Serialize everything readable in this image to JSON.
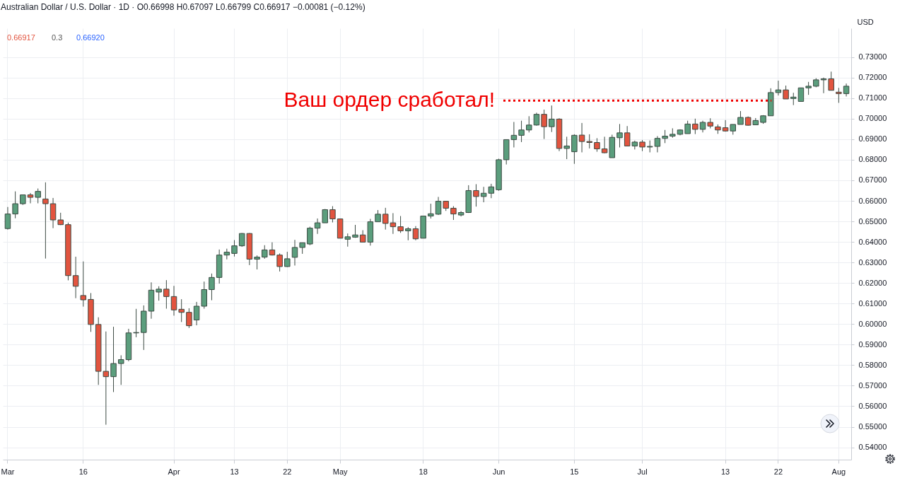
{
  "chart_data": {
    "type": "candlestick",
    "title": "Australian Dollar / U.S. Dollar · 1D · O0.66998 H0.67097 L0.66799 C0.66917 −0.00081 (−0.12%)",
    "ylabel": "USD",
    "annotations": [
      "0.66917",
      "0.3",
      "0.66920"
    ],
    "ref_lines": [
      {
        "axis": "y",
        "value": 0.7088,
        "label": "Ваш ордер сработал!",
        "color": "#f00000",
        "line_style": "dotted"
      }
    ],
    "categories": [
      "Mar",
      null,
      null,
      null,
      null,
      null,
      null,
      null,
      null,
      null,
      "16",
      null,
      null,
      null,
      null,
      null,
      null,
      null,
      null,
      null,
      null,
      null,
      "Apr",
      null,
      null,
      null,
      null,
      null,
      null,
      null,
      "13",
      null,
      null,
      null,
      null,
      null,
      null,
      "22",
      null,
      null,
      null,
      null,
      null,
      null,
      "May",
      null,
      null,
      null,
      null,
      null,
      null,
      null,
      null,
      null,
      null,
      "18",
      null,
      null,
      null,
      null,
      null,
      null,
      null,
      null,
      null,
      "Jun",
      null,
      null,
      null,
      null,
      null,
      null,
      null,
      null,
      null,
      "15",
      null,
      null,
      null,
      null,
      null,
      null,
      null,
      null,
      "Jul",
      null,
      null,
      null,
      null,
      null,
      null,
      null,
      null,
      null,
      null,
      "13",
      null,
      null,
      null,
      null,
      null,
      null,
      "22",
      null,
      null,
      null,
      null,
      null,
      null,
      null,
      "Aug",
      null
    ],
    "ohlc": [
      [
        0.6465,
        0.657,
        0.646,
        0.6536
      ],
      [
        0.6536,
        0.6646,
        0.6515,
        0.6586
      ],
      [
        0.6586,
        0.6629,
        0.658,
        0.6629
      ],
      [
        0.6629,
        0.6638,
        0.6588,
        0.6617
      ],
      [
        0.6617,
        0.666,
        0.6588,
        0.6646
      ],
      [
        0.6609,
        0.669,
        0.6319,
        0.6586
      ],
      [
        0.6586,
        0.6614,
        0.6467,
        0.6507
      ],
      [
        0.6507,
        0.6542,
        0.6482,
        0.6484
      ],
      [
        0.6484,
        0.6494,
        0.6213,
        0.6236
      ],
      [
        0.6236,
        0.6328,
        0.6126,
        0.6184
      ],
      [
        0.6139,
        0.6305,
        0.6085,
        0.6118
      ],
      [
        0.612,
        0.6151,
        0.5962,
        0.5998
      ],
      [
        0.5998,
        0.6033,
        0.5704,
        0.577
      ],
      [
        0.577,
        0.5964,
        0.551,
        0.5744
      ],
      [
        0.5744,
        0.5987,
        0.5669,
        0.5808
      ],
      [
        0.5808,
        0.5848,
        0.5704,
        0.5827
      ],
      [
        0.5827,
        0.5977,
        0.5819,
        0.5957
      ],
      [
        0.5957,
        0.6074,
        0.5936,
        0.5959
      ],
      [
        0.5959,
        0.6091,
        0.5874,
        0.6063
      ],
      [
        0.6063,
        0.6203,
        0.6026,
        0.6165
      ],
      [
        0.6156,
        0.6184,
        0.6114,
        0.617
      ],
      [
        0.617,
        0.6214,
        0.6075,
        0.6134
      ],
      [
        0.6134,
        0.6186,
        0.6041,
        0.6069
      ],
      [
        0.6072,
        0.6121,
        0.601,
        0.6057
      ],
      [
        0.6057,
        0.6077,
        0.5981,
        0.5992
      ],
      [
        0.602,
        0.6108,
        0.5994,
        0.6087
      ],
      [
        0.6087,
        0.6207,
        0.6075,
        0.6168
      ],
      [
        0.6168,
        0.6246,
        0.6116,
        0.6227
      ],
      [
        0.6227,
        0.6363,
        0.6197,
        0.6336
      ],
      [
        0.6336,
        0.6367,
        0.6315,
        0.635
      ],
      [
        0.6344,
        0.6409,
        0.6329,
        0.6381
      ],
      [
        0.6381,
        0.6443,
        0.6376,
        0.6441
      ],
      [
        0.6441,
        0.6443,
        0.6287,
        0.6316
      ],
      [
        0.6316,
        0.6334,
        0.6266,
        0.6326
      ],
      [
        0.6326,
        0.6384,
        0.6318,
        0.6361
      ],
      [
        0.6361,
        0.6398,
        0.6334,
        0.6336
      ],
      [
        0.6336,
        0.6344,
        0.6256,
        0.628
      ],
      [
        0.628,
        0.6352,
        0.6278,
        0.6318
      ],
      [
        0.6325,
        0.641,
        0.6285,
        0.6373
      ],
      [
        0.6373,
        0.6396,
        0.6342,
        0.6396
      ],
      [
        0.639,
        0.6474,
        0.6384,
        0.6467
      ],
      [
        0.6467,
        0.6514,
        0.6439,
        0.6493
      ],
      [
        0.6493,
        0.656,
        0.6493,
        0.6557
      ],
      [
        0.6557,
        0.6574,
        0.6495,
        0.6512
      ],
      [
        0.6512,
        0.6514,
        0.6418,
        0.6418
      ],
      [
        0.6413,
        0.6441,
        0.6377,
        0.6425
      ],
      [
        0.6423,
        0.6483,
        0.642,
        0.6434
      ],
      [
        0.6434,
        0.6457,
        0.6399,
        0.6399
      ],
      [
        0.6399,
        0.6512,
        0.6382,
        0.6498
      ],
      [
        0.6498,
        0.6555,
        0.6498,
        0.6535
      ],
      [
        0.6535,
        0.6566,
        0.646,
        0.649
      ],
      [
        0.6493,
        0.654,
        0.6439,
        0.6474
      ],
      [
        0.6474,
        0.6526,
        0.6444,
        0.6454
      ],
      [
        0.6454,
        0.6472,
        0.6408,
        0.6464
      ],
      [
        0.6464,
        0.6477,
        0.6408,
        0.6415
      ],
      [
        0.6418,
        0.6526,
        0.6418,
        0.6526
      ],
      [
        0.6526,
        0.6586,
        0.6514,
        0.6537
      ],
      [
        0.6535,
        0.6619,
        0.6531,
        0.6598
      ],
      [
        0.6598,
        0.6598,
        0.6551,
        0.6564
      ],
      [
        0.6564,
        0.6574,
        0.6507,
        0.6536
      ],
      [
        0.6531,
        0.655,
        0.6524,
        0.6543
      ],
      [
        0.6543,
        0.6676,
        0.6541,
        0.665
      ],
      [
        0.665,
        0.6681,
        0.6572,
        0.6621
      ],
      [
        0.6621,
        0.6668,
        0.6593,
        0.6637
      ],
      [
        0.6637,
        0.6683,
        0.6613,
        0.6668
      ],
      [
        0.6654,
        0.6805,
        0.6649,
        0.68
      ],
      [
        0.68,
        0.6898,
        0.6777,
        0.6898
      ],
      [
        0.6898,
        0.6984,
        0.686,
        0.6919
      ],
      [
        0.6919,
        0.699,
        0.6886,
        0.6945
      ],
      [
        0.6945,
        0.7012,
        0.6933,
        0.6969
      ],
      [
        0.6969,
        0.7029,
        0.6966,
        0.7021
      ],
      [
        0.7021,
        0.7044,
        0.6901,
        0.6961
      ],
      [
        0.6961,
        0.7064,
        0.6935,
        0.6998
      ],
      [
        0.6998,
        0.7002,
        0.6842,
        0.6855
      ],
      [
        0.6855,
        0.6912,
        0.6803,
        0.6867
      ],
      [
        0.6839,
        0.6924,
        0.678,
        0.6919
      ],
      [
        0.692,
        0.6979,
        0.6836,
        0.6889
      ],
      [
        0.6889,
        0.6924,
        0.6855,
        0.6884
      ],
      [
        0.6884,
        0.6905,
        0.6839,
        0.6853
      ],
      [
        0.6853,
        0.6912,
        0.6832,
        0.6834
      ],
      [
        0.681,
        0.6922,
        0.681,
        0.6909
      ],
      [
        0.6907,
        0.6974,
        0.686,
        0.6931
      ],
      [
        0.6931,
        0.6964,
        0.6867,
        0.6867
      ],
      [
        0.6867,
        0.6893,
        0.685,
        0.6886
      ],
      [
        0.6886,
        0.6896,
        0.6842,
        0.6862
      ],
      [
        0.6862,
        0.6894,
        0.6836,
        0.6865
      ],
      [
        0.6865,
        0.6915,
        0.6836,
        0.6904
      ],
      [
        0.6904,
        0.6945,
        0.6881,
        0.6915
      ],
      [
        0.6915,
        0.6953,
        0.6907,
        0.6924
      ],
      [
        0.6924,
        0.6948,
        0.6919,
        0.6945
      ],
      [
        0.6927,
        0.699,
        0.6927,
        0.6974
      ],
      [
        0.6974,
        0.7,
        0.6925,
        0.6948
      ],
      [
        0.6948,
        0.699,
        0.6933,
        0.6982
      ],
      [
        0.6982,
        0.7002,
        0.6953,
        0.6964
      ],
      [
        0.696,
        0.6972,
        0.6926,
        0.6945
      ],
      [
        0.6956,
        0.6993,
        0.6937,
        0.694
      ],
      [
        0.694,
        0.6972,
        0.6922,
        0.6972
      ],
      [
        0.6972,
        0.7037,
        0.6972,
        0.7006
      ],
      [
        0.7006,
        0.7011,
        0.6966,
        0.6968
      ],
      [
        0.697,
        0.7003,
        0.697,
        0.6991
      ],
      [
        0.6982,
        0.7017,
        0.6975,
        0.7014
      ],
      [
        0.7014,
        0.7148,
        0.7014,
        0.7127
      ],
      [
        0.7127,
        0.7185,
        0.7113,
        0.714
      ],
      [
        0.714,
        0.7161,
        0.7096,
        0.7096
      ],
      [
        0.7098,
        0.7126,
        0.7066,
        0.7105
      ],
      [
        0.7084,
        0.715,
        0.7084,
        0.715
      ],
      [
        0.715,
        0.7179,
        0.7116,
        0.7158
      ],
      [
        0.7158,
        0.7197,
        0.7153,
        0.7189
      ],
      [
        0.7189,
        0.72,
        0.7124,
        0.7194
      ],
      [
        0.7194,
        0.7229,
        0.7138,
        0.7138
      ],
      [
        0.7129,
        0.715,
        0.7077,
        0.7122
      ],
      [
        0.7122,
        0.7171,
        0.7108,
        0.7158
      ]
    ],
    "colors": [
      "#5b9e7d",
      "#5b9e7d",
      "#5b9e7d",
      "#e2543f",
      "#5b9e7d",
      "#e2543f",
      "#e2543f",
      "#e2543f",
      "#e2543f",
      "#e2543f",
      "#e2543f",
      "#e2543f",
      "#e2543f",
      "#e2543f",
      "#5b9e7d",
      "#5b9e7d",
      "#5b9e7d",
      "#5b9e7d",
      "#5b9e7d",
      "#5b9e7d",
      "#5b9e7d",
      "#e2543f",
      "#e2543f",
      "#e2543f",
      "#e2543f",
      "#5b9e7d",
      "#5b9e7d",
      "#5b9e7d",
      "#5b9e7d",
      "#5b9e7d",
      "#5b9e7d",
      "#5b9e7d",
      "#e2543f",
      "#5b9e7d",
      "#5b9e7d",
      "#e2543f",
      "#e2543f",
      "#5b9e7d",
      "#5b9e7d",
      "#5b9e7d",
      "#5b9e7d",
      "#5b9e7d",
      "#5b9e7d",
      "#e2543f",
      "#e2543f",
      "#5b9e7d",
      "#5b9e7d",
      "#e2543f",
      "#5b9e7d",
      "#5b9e7d",
      "#e2543f",
      "#e2543f",
      "#e2543f",
      "#5b9e7d",
      "#e2543f",
      "#5b9e7d",
      "#5b9e7d",
      "#5b9e7d",
      "#e2543f",
      "#e2543f",
      "#5b9e7d",
      "#5b9e7d",
      "#e2543f",
      "#5b9e7d",
      "#5b9e7d",
      "#5b9e7d",
      "#5b9e7d",
      "#5b9e7d",
      "#5b9e7d",
      "#5b9e7d",
      "#5b9e7d",
      "#e2543f",
      "#5b9e7d",
      "#e2543f",
      "#5b9e7d",
      "#5b9e7d",
      "#e2543f",
      "#e2543f",
      "#e2543f",
      "#e2543f",
      "#5b9e7d",
      "#5b9e7d",
      "#e2543f",
      "#5b9e7d",
      "#e2543f",
      "#5b9e7d",
      "#5b9e7d",
      "#5b9e7d",
      "#5b9e7d",
      "#5b9e7d",
      "#5b9e7d",
      "#e2543f",
      "#5b9e7d",
      "#e2543f",
      "#e2543f",
      "#e2543f",
      "#5b9e7d",
      "#5b9e7d",
      "#e2543f",
      "#5b9e7d",
      "#5b9e7d",
      "#5b9e7d",
      "#5b9e7d",
      "#e2543f",
      "#5b9e7d",
      "#5b9e7d",
      "#5b9e7d",
      "#5b9e7d",
      "#5b9e7d",
      "#e2543f",
      "#e2543f",
      "#5b9e7d"
    ],
    "ylim": [
      0.534,
      0.744
    ],
    "yticks": [
      {
        "value": 0.54,
        "label": "0.54000"
      },
      {
        "value": 0.55,
        "label": "0.55000"
      },
      {
        "value": 0.56,
        "label": "0.56000"
      },
      {
        "value": 0.57,
        "label": "0.57000"
      },
      {
        "value": 0.58,
        "label": "0.58000"
      },
      {
        "value": 0.59,
        "label": "0.59000"
      },
      {
        "value": 0.6,
        "label": "0.60000"
      },
      {
        "value": 0.61,
        "label": "0.61000"
      },
      {
        "value": 0.62,
        "label": "0.62000"
      },
      {
        "value": 0.63,
        "label": "0.63000"
      },
      {
        "value": 0.64,
        "label": "0.64000"
      },
      {
        "value": 0.65,
        "label": "0.65000"
      },
      {
        "value": 0.66,
        "label": "0.66000"
      },
      {
        "value": 0.67,
        "label": "0.67000"
      },
      {
        "value": 0.68,
        "label": "0.68000"
      },
      {
        "value": 0.69,
        "label": "0.69000"
      },
      {
        "value": 0.7,
        "label": "0.70000"
      },
      {
        "value": 0.71,
        "label": "0.71000"
      },
      {
        "value": 0.72,
        "label": "0.72000"
      },
      {
        "value": 0.73,
        "label": "0.73000"
      }
    ],
    "grid": true
  }
}
